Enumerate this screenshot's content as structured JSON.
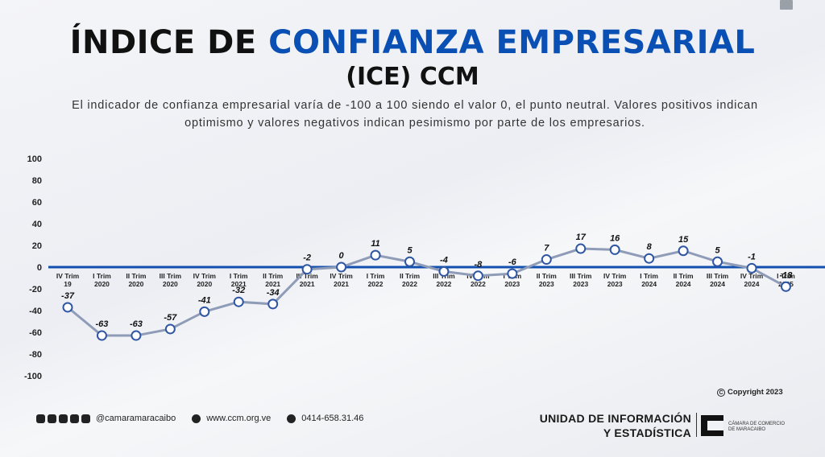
{
  "header": {
    "title_part1": "ÍNDICE DE ",
    "title_part2": "CONFIANZA EMPRESARIAL",
    "title_line2": "(ICE) CCM",
    "description": "El indicador de confianza empresarial varía de -100 a 100 siendo el valor 0, el punto neutral. Valores positivos indican optimismo y valores negativos indican pesimismo por parte de los empresarios."
  },
  "colors": {
    "accent": "#0a4fb3",
    "line": "#8f9cb8",
    "axis": "#1250b0",
    "marker_stroke": "#2f56a3"
  },
  "chart_data": {
    "type": "line",
    "categories": [
      "IV Trim 19",
      "I Trim 2020",
      "II Trim 2020",
      "III Trim 2020",
      "IV Trim 2020",
      "I Trim 2021",
      "II Trim 2021",
      "III Trim 2021",
      "IV Trim 2021",
      "I Trim 2022",
      "II Trim 2022",
      "III Trim 2022",
      "IV Trim 2022",
      "I Trim 2023",
      "II Trim 2023",
      "III Trim 2023",
      "IV Trim 2023",
      "I Trim 2024",
      "II Trim 2024",
      "III Trim 2024",
      "IV Trim 2024",
      "I Trim 2025"
    ],
    "category_lines": [
      [
        "IV Trim",
        "19"
      ],
      [
        "I Trim",
        "2020"
      ],
      [
        "II Trim",
        "2020"
      ],
      [
        "III Trim",
        "2020"
      ],
      [
        "IV Trim",
        "2020"
      ],
      [
        "I Trim",
        "2021"
      ],
      [
        "II Trim",
        "2021"
      ],
      [
        "III Trim",
        "2021"
      ],
      [
        "IV Trim",
        "2021"
      ],
      [
        "I Trim",
        "2022"
      ],
      [
        "II Trim",
        "2022"
      ],
      [
        "III Trim",
        "2022"
      ],
      [
        "IV Trim",
        "2022"
      ],
      [
        "I Trim",
        "2023"
      ],
      [
        "II Trim",
        "2023"
      ],
      [
        "III Trim",
        "2023"
      ],
      [
        "IV Trim",
        "2023"
      ],
      [
        "I Trim",
        "2024"
      ],
      [
        "II Trim",
        "2024"
      ],
      [
        "III Trim",
        "2024"
      ],
      [
        "IV Trim",
        "2024"
      ],
      [
        "I Trim",
        "2025"
      ]
    ],
    "values": [
      -37,
      -63,
      -63,
      -57,
      -41,
      -32,
      -34,
      -2,
      0,
      11,
      5,
      -4,
      -8,
      -6,
      7,
      17,
      16,
      8,
      15,
      5,
      -1,
      -18
    ],
    "ylim": [
      -100,
      100
    ],
    "yticks": [
      100,
      80,
      60,
      40,
      20,
      0,
      -20,
      -40,
      -60,
      -80,
      -100
    ],
    "grid": false,
    "legend": "none"
  },
  "footer": {
    "social_handle": "@camaramaracaibo",
    "website": "www.ccm.org.ve",
    "phone": "0414-658.31.46",
    "copyright": "Copyright 2023",
    "unit_line1": "UNIDAD DE INFORMACIÓN",
    "unit_line2": "Y ESTADÍSTICA",
    "logo_line1": "CÁMARA DE COMERCIO",
    "logo_line2": "DE MARACAIBO"
  }
}
